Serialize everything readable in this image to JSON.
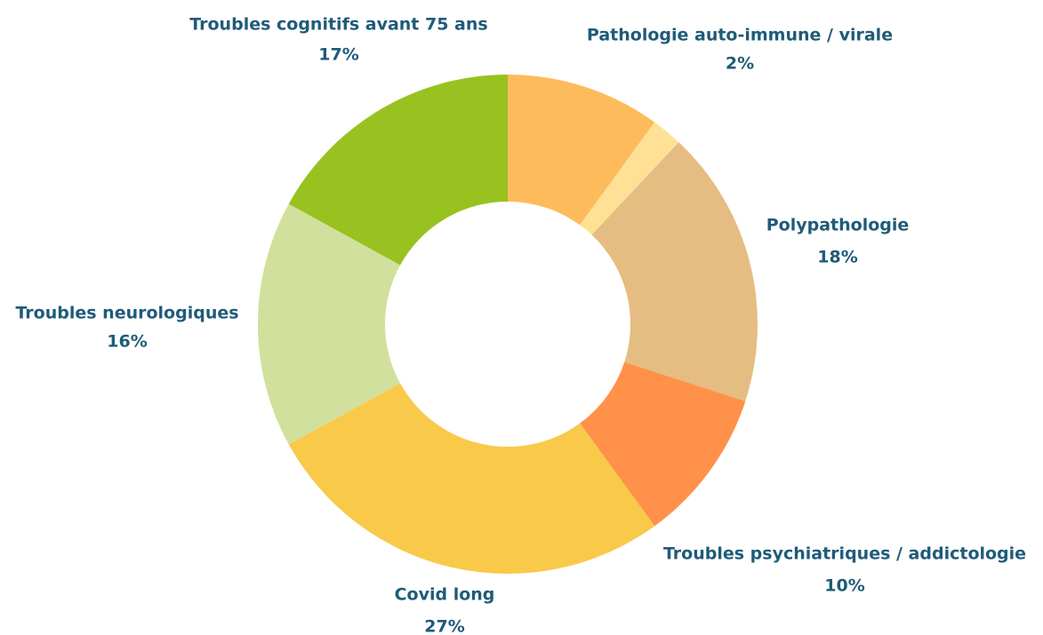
{
  "chart_data": {
    "type": "donut",
    "categories": [
      null,
      "Pathologie auto-immune / virale",
      "Polypathologie",
      "Troubles psychiatriques / addictologie",
      "Covid long",
      "Troubles neurologiques",
      "Troubles cognitifs avant 75 ans"
    ],
    "values": [
      10,
      2,
      18,
      10,
      27,
      16,
      17
    ],
    "value_labels": [
      null,
      "2%",
      "18%",
      "10%",
      "27%",
      "16%",
      "17%"
    ],
    "colors": [
      "#fdbb5c",
      "#ffe196",
      "#e5bd82",
      "#ff914a",
      "#f9c94a",
      "#d1e09c",
      "#98c21f"
    ]
  }
}
